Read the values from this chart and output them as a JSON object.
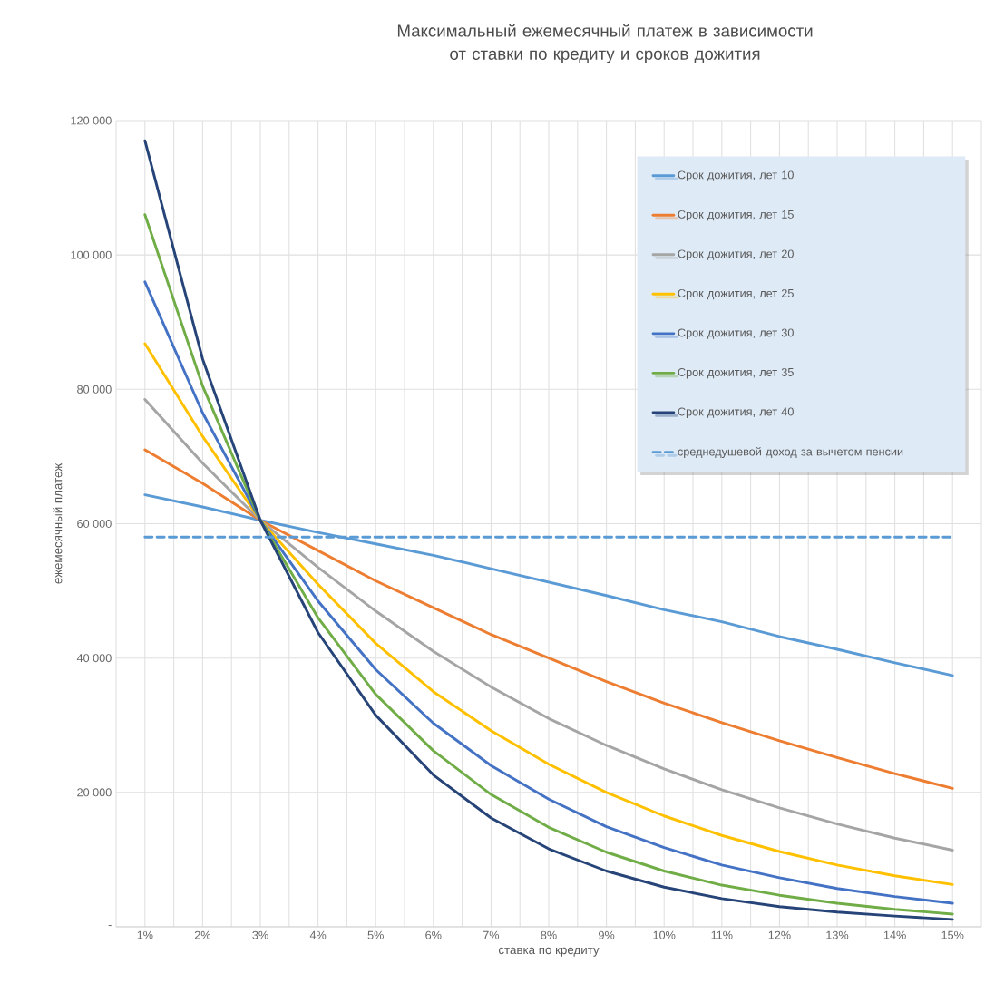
{
  "chart_data": {
    "type": "line",
    "title": "Максимальный ежемесячный платеж в зависимости от ставки по кредиту и сроков дожития",
    "xlabel": "ставка по кредиту",
    "ylabel": "ежемесячный платеж",
    "categories": [
      "1%",
      "2%",
      "3%",
      "4%",
      "5%",
      "6%",
      "7%",
      "8%",
      "9%",
      "10%",
      "11%",
      "12%",
      "13%",
      "14%",
      "15%"
    ],
    "ylim": [
      0,
      120000
    ],
    "yticks": [
      {
        "value": 0,
        "label": "-"
      },
      {
        "value": 20000,
        "label": "20 000"
      },
      {
        "value": 40000,
        "label": "40 000"
      },
      {
        "value": 60000,
        "label": "60 000"
      },
      {
        "value": 80000,
        "label": "80 000"
      },
      {
        "value": 100000,
        "label": "100 000"
      },
      {
        "value": 120000,
        "label": "120 000"
      }
    ],
    "grid": true,
    "legend": "top right",
    "marker": "none",
    "series": [
      {
        "name": "Срок дожития, лет 10",
        "color": "#5b9bd5",
        "values": [
          64300,
          62500,
          60500,
          58700,
          57000,
          55300,
          53300,
          51300,
          49300,
          47200,
          45400,
          43200,
          41300,
          39300,
          37400
        ]
      },
      {
        "name": "Срок дожития, лет 15",
        "color": "#ed7d31",
        "values": [
          71000,
          66000,
          60500,
          56000,
          51500,
          47500,
          43500,
          40000,
          36500,
          33300,
          30400,
          27700,
          25200,
          22800,
          20600
        ]
      },
      {
        "name": "Срок дожития, лет 20",
        "color": "#a5a5a5",
        "values": [
          78500,
          69000,
          60500,
          53500,
          47000,
          41000,
          35700,
          31000,
          27000,
          23500,
          20400,
          17700,
          15300,
          13200,
          11400
        ]
      },
      {
        "name": "Срок дожития, лет 25",
        "color": "#ffc000",
        "values": [
          86800,
          73000,
          60500,
          51000,
          42200,
          35000,
          29200,
          24200,
          20000,
          16500,
          13600,
          11200,
          9200,
          7600,
          6300
        ]
      },
      {
        "name": "Срок дожития, лет 30",
        "color": "#4472c4",
        "values": [
          96000,
          76500,
          60500,
          48500,
          38300,
          30300,
          24000,
          19000,
          14900,
          11800,
          9200,
          7300,
          5700,
          4500,
          3500
        ]
      },
      {
        "name": "Срок дожития, лет 35",
        "color": "#70ad47",
        "values": [
          106000,
          80500,
          60500,
          46000,
          34600,
          26200,
          19700,
          14800,
          11100,
          8300,
          6200,
          4700,
          3500,
          2600,
          1900
        ]
      },
      {
        "name": "Срок дожития, лет 40",
        "color": "#264478",
        "values": [
          117000,
          84500,
          60500,
          43800,
          31500,
          22600,
          16200,
          11600,
          8300,
          5900,
          4200,
          3000,
          2200,
          1600,
          1100
        ]
      },
      {
        "name": "среднедушевой доход за вычетом пенсии",
        "color": "#5b9bd5",
        "line_style": "dashed",
        "values": [
          58000,
          58000,
          58000,
          58000,
          58000,
          58000,
          58000,
          58000,
          58000,
          58000,
          58000,
          58000,
          58000,
          58000,
          58000
        ]
      }
    ]
  }
}
